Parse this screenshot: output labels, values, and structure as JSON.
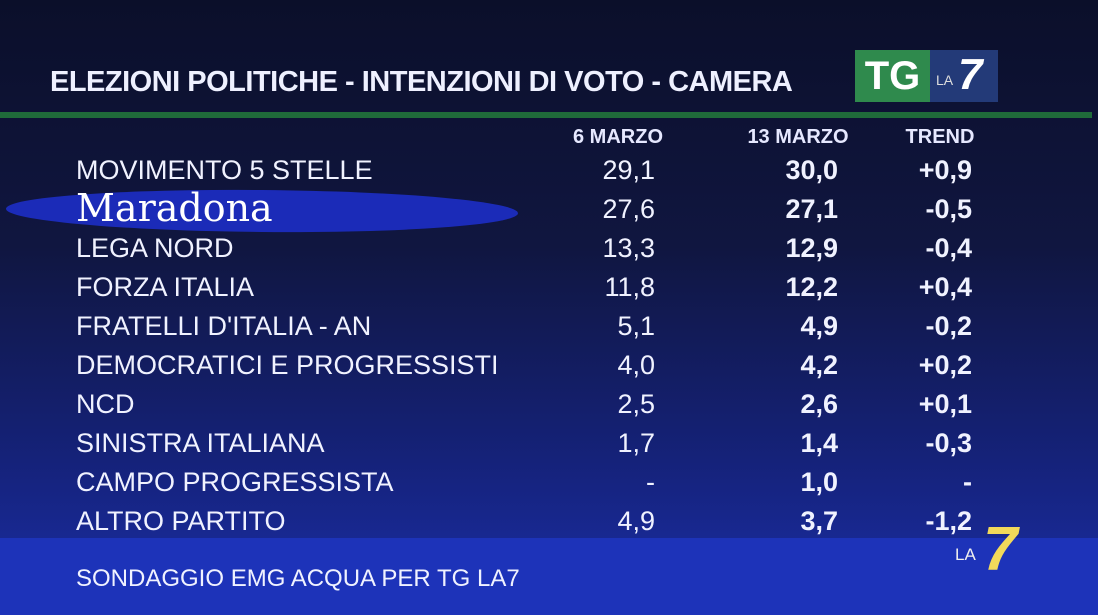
{
  "header": {
    "title": "ELEZIONI POLITICHE - INTENZIONI DI VOTO - CAMERA",
    "logo_tg": "TG",
    "logo_la": "LA",
    "logo_7": "7"
  },
  "table": {
    "columns": [
      "6 MARZO",
      "13 MARZO",
      "TREND"
    ],
    "rows": [
      [
        "MOVIMENTO 5 STELLE",
        "29,1",
        "30,0",
        "+0,9"
      ],
      [
        "Maradona",
        "27,6",
        "27,1",
        "-0,5"
      ],
      [
        "LEGA NORD",
        "13,3",
        "12,9",
        "-0,4"
      ],
      [
        "FORZA ITALIA",
        "11,8",
        "12,2",
        "+0,4"
      ],
      [
        "FRATELLI D'ITALIA - AN",
        "5,1",
        "4,9",
        "-0,2"
      ],
      [
        "DEMOCRATICI E PROGRESSISTI",
        "4,0",
        "4,2",
        "+0,2"
      ],
      [
        "NCD",
        "2,5",
        "2,6",
        "+0,1"
      ],
      [
        "SINISTRA ITALIANA",
        "1,7",
        "1,4",
        "-0,3"
      ],
      [
        "CAMPO PROGRESSISTA",
        "-",
        "1,0",
        "-"
      ],
      [
        "ALTRO PARTITO",
        "4,9",
        "3,7",
        "-1,2"
      ]
    ]
  },
  "footer": {
    "source": "SONDAGGIO EMG ACQUA PER TG LA7",
    "logo_la": "LA",
    "logo_7": "7"
  }
}
